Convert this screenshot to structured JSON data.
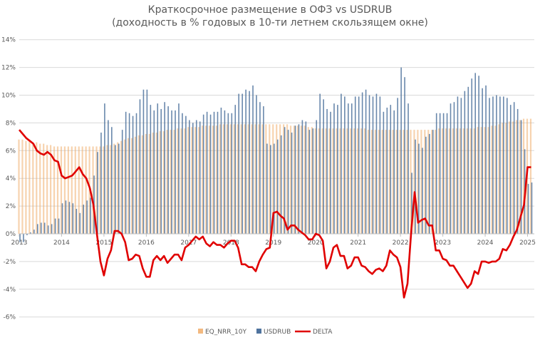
{
  "chart_data": {
    "type": "bar+line",
    "title": "Краткосрочное размещение в ОФЗ vs USDRUB",
    "subtitle": "(доходность в % годовых в 10-ти летнем скользящем окне)",
    "x_start": "2013-01",
    "x_frequency": "monthly",
    "x_ticks": [
      "2013",
      "2014",
      "2015",
      "2016",
      "2017",
      "2018",
      "2019",
      "2020",
      "2021",
      "2022",
      "2023",
      "2024",
      "2025"
    ],
    "y_ticks": [
      "14%",
      "12%",
      "10%",
      "8%",
      "6%",
      "4%",
      "2%",
      "0%",
      "-2%",
      "-4%",
      "-6%"
    ],
    "ylim": [
      -6,
      14
    ],
    "y_unit": "%",
    "grid": true,
    "legend": "bottom",
    "series": [
      {
        "name": "EQ_NRR_10Y",
        "type": "bar",
        "color": "#f0a860",
        "values": [
          6.8,
          6.8,
          6.7,
          6.7,
          6.6,
          6.6,
          6.5,
          6.5,
          6.4,
          6.4,
          6.3,
          6.3,
          6.3,
          6.3,
          6.3,
          6.3,
          6.3,
          6.3,
          6.3,
          6.3,
          6.3,
          6.3,
          6.3,
          6.3,
          6.3,
          6.4,
          6.4,
          6.5,
          6.6,
          6.7,
          6.8,
          6.9,
          6.9,
          7.0,
          7.1,
          7.1,
          7.2,
          7.2,
          7.3,
          7.3,
          7.4,
          7.4,
          7.5,
          7.5,
          7.5,
          7.6,
          7.6,
          7.6,
          7.7,
          7.7,
          7.7,
          7.7,
          7.8,
          7.8,
          7.8,
          7.8,
          7.8,
          7.9,
          7.9,
          7.9,
          7.9,
          7.9,
          7.9,
          7.9,
          7.9,
          7.9,
          7.9,
          7.9,
          7.9,
          7.9,
          7.9,
          7.9,
          7.9,
          7.9,
          7.9,
          7.9,
          7.9,
          7.8,
          7.8,
          7.8,
          7.8,
          7.8,
          7.7,
          7.7,
          7.6,
          7.6,
          7.6,
          7.6,
          7.6,
          7.6,
          7.6,
          7.6,
          7.6,
          7.6,
          7.6,
          7.6,
          7.6,
          7.6,
          7.6,
          7.5,
          7.5,
          7.5,
          7.5,
          7.5,
          7.5,
          7.5,
          7.5,
          7.5,
          7.5,
          7.5,
          7.5,
          7.5,
          7.5,
          7.5,
          7.5,
          7.5,
          7.5,
          7.5,
          7.5,
          7.6,
          7.6,
          7.6,
          7.6,
          7.6,
          7.6,
          7.6,
          7.6,
          7.6,
          7.6,
          7.6,
          7.7,
          7.7,
          7.7,
          7.7,
          7.8,
          7.8,
          7.9,
          8.0,
          8.0,
          8.1,
          8.1,
          8.2,
          8.2,
          8.3,
          8.3,
          8.3
        ]
      },
      {
        "name": "USDRUB",
        "type": "bar",
        "color": "#4f739e",
        "values": [
          -0.6,
          -0.6,
          -0.1,
          0.1,
          0.3,
          0.7,
          0.8,
          0.8,
          0.6,
          0.7,
          1.1,
          1.1,
          2.2,
          2.4,
          2.3,
          2.2,
          1.8,
          1.5,
          2.1,
          2.4,
          2.6,
          4.2,
          5.9,
          7.3,
          9.4,
          8.2,
          7.7,
          6.4,
          6.5,
          7.5,
          8.8,
          8.7,
          8.5,
          8.7,
          9.7,
          10.4,
          10.4,
          9.3,
          8.9,
          9.4,
          9.0,
          9.5,
          9.2,
          8.9,
          8.9,
          9.4,
          8.7,
          8.5,
          8.2,
          8.0,
          8.2,
          8.1,
          8.6,
          8.8,
          8.6,
          8.8,
          8.8,
          9.1,
          8.9,
          8.7,
          8.7,
          9.3,
          10.1,
          10.1,
          10.4,
          10.3,
          10.7,
          10.0,
          9.5,
          9.2,
          6.5,
          6.4,
          6.5,
          6.8,
          7.1,
          7.7,
          7.5,
          7.3,
          7.8,
          7.9,
          8.2,
          8.1,
          7.5,
          7.6,
          8.2,
          10.1,
          9.7,
          9.0,
          8.8,
          9.4,
          9.3,
          10.1,
          9.9,
          9.4,
          9.4,
          9.9,
          9.9,
          10.2,
          10.4,
          10.0,
          9.9,
          10.1,
          9.9,
          8.8,
          9.1,
          9.3,
          8.9,
          9.8,
          12.0,
          11.3,
          9.4,
          4.4,
          6.8,
          6.5,
          6.2,
          7.0,
          7.2,
          7.5,
          8.7,
          8.7,
          8.7,
          8.7,
          9.4,
          9.5,
          9.9,
          9.8,
          10.3,
          10.6,
          11.2,
          11.6,
          11.4,
          10.5,
          10.7,
          9.8,
          9.9,
          10.0,
          9.9,
          9.9,
          9.8,
          9.3,
          9.5,
          9.0,
          8.2,
          6.1,
          3.6,
          3.7
        ]
      },
      {
        "name": "DELTA",
        "type": "line",
        "color": "#e00000",
        "values": [
          7.5,
          7.2,
          6.9,
          6.7,
          6.5,
          6.0,
          5.8,
          5.7,
          5.9,
          5.7,
          5.3,
          5.2,
          4.2,
          4.0,
          4.1,
          4.2,
          4.5,
          4.8,
          4.3,
          4.0,
          3.3,
          2.1,
          0.0,
          -2.0,
          -3.0,
          -1.8,
          -1.2,
          0.2,
          0.2,
          0.0,
          -0.6,
          -1.9,
          -1.8,
          -1.5,
          -1.6,
          -2.5,
          -3.1,
          -3.1,
          -1.9,
          -1.6,
          -1.9,
          -1.6,
          -2.1,
          -1.8,
          -1.5,
          -1.5,
          -1.9,
          -1.0,
          -0.8,
          -0.5,
          -0.2,
          -0.4,
          -0.2,
          -0.7,
          -0.9,
          -0.6,
          -0.8,
          -0.8,
          -1.0,
          -0.7,
          -0.5,
          -0.5,
          -1.0,
          -2.2,
          -2.2,
          -2.4,
          -2.4,
          -2.7,
          -2.0,
          -1.5,
          -1.1,
          -1.0,
          1.5,
          1.6,
          1.3,
          1.1,
          0.3,
          0.6,
          0.6,
          0.3,
          0.1,
          -0.1,
          -0.4,
          -0.4,
          0.0,
          -0.1,
          -0.5,
          -2.5,
          -2.0,
          -1.0,
          -0.8,
          -1.6,
          -1.6,
          -2.5,
          -2.3,
          -1.7,
          -1.7,
          -2.3,
          -2.4,
          -2.7,
          -2.9,
          -2.6,
          -2.5,
          -2.7,
          -2.3,
          -1.2,
          -1.5,
          -1.7,
          -2.4,
          -4.6,
          -3.6,
          0.0,
          3.0,
          0.8,
          1.0,
          1.1,
          0.6,
          0.6,
          -1.2,
          -1.2,
          -1.8,
          -1.9,
          -2.3,
          -2.3,
          -2.7,
          -3.1,
          -3.5,
          -3.9,
          -3.6,
          -2.7,
          -2.9,
          -2.0,
          -2.0,
          -2.1,
          -2.0,
          -2.0,
          -1.8,
          -1.1,
          -1.2,
          -0.8,
          -0.2,
          0.3,
          1.2,
          2.1,
          4.8,
          4.8
        ]
      }
    ]
  }
}
